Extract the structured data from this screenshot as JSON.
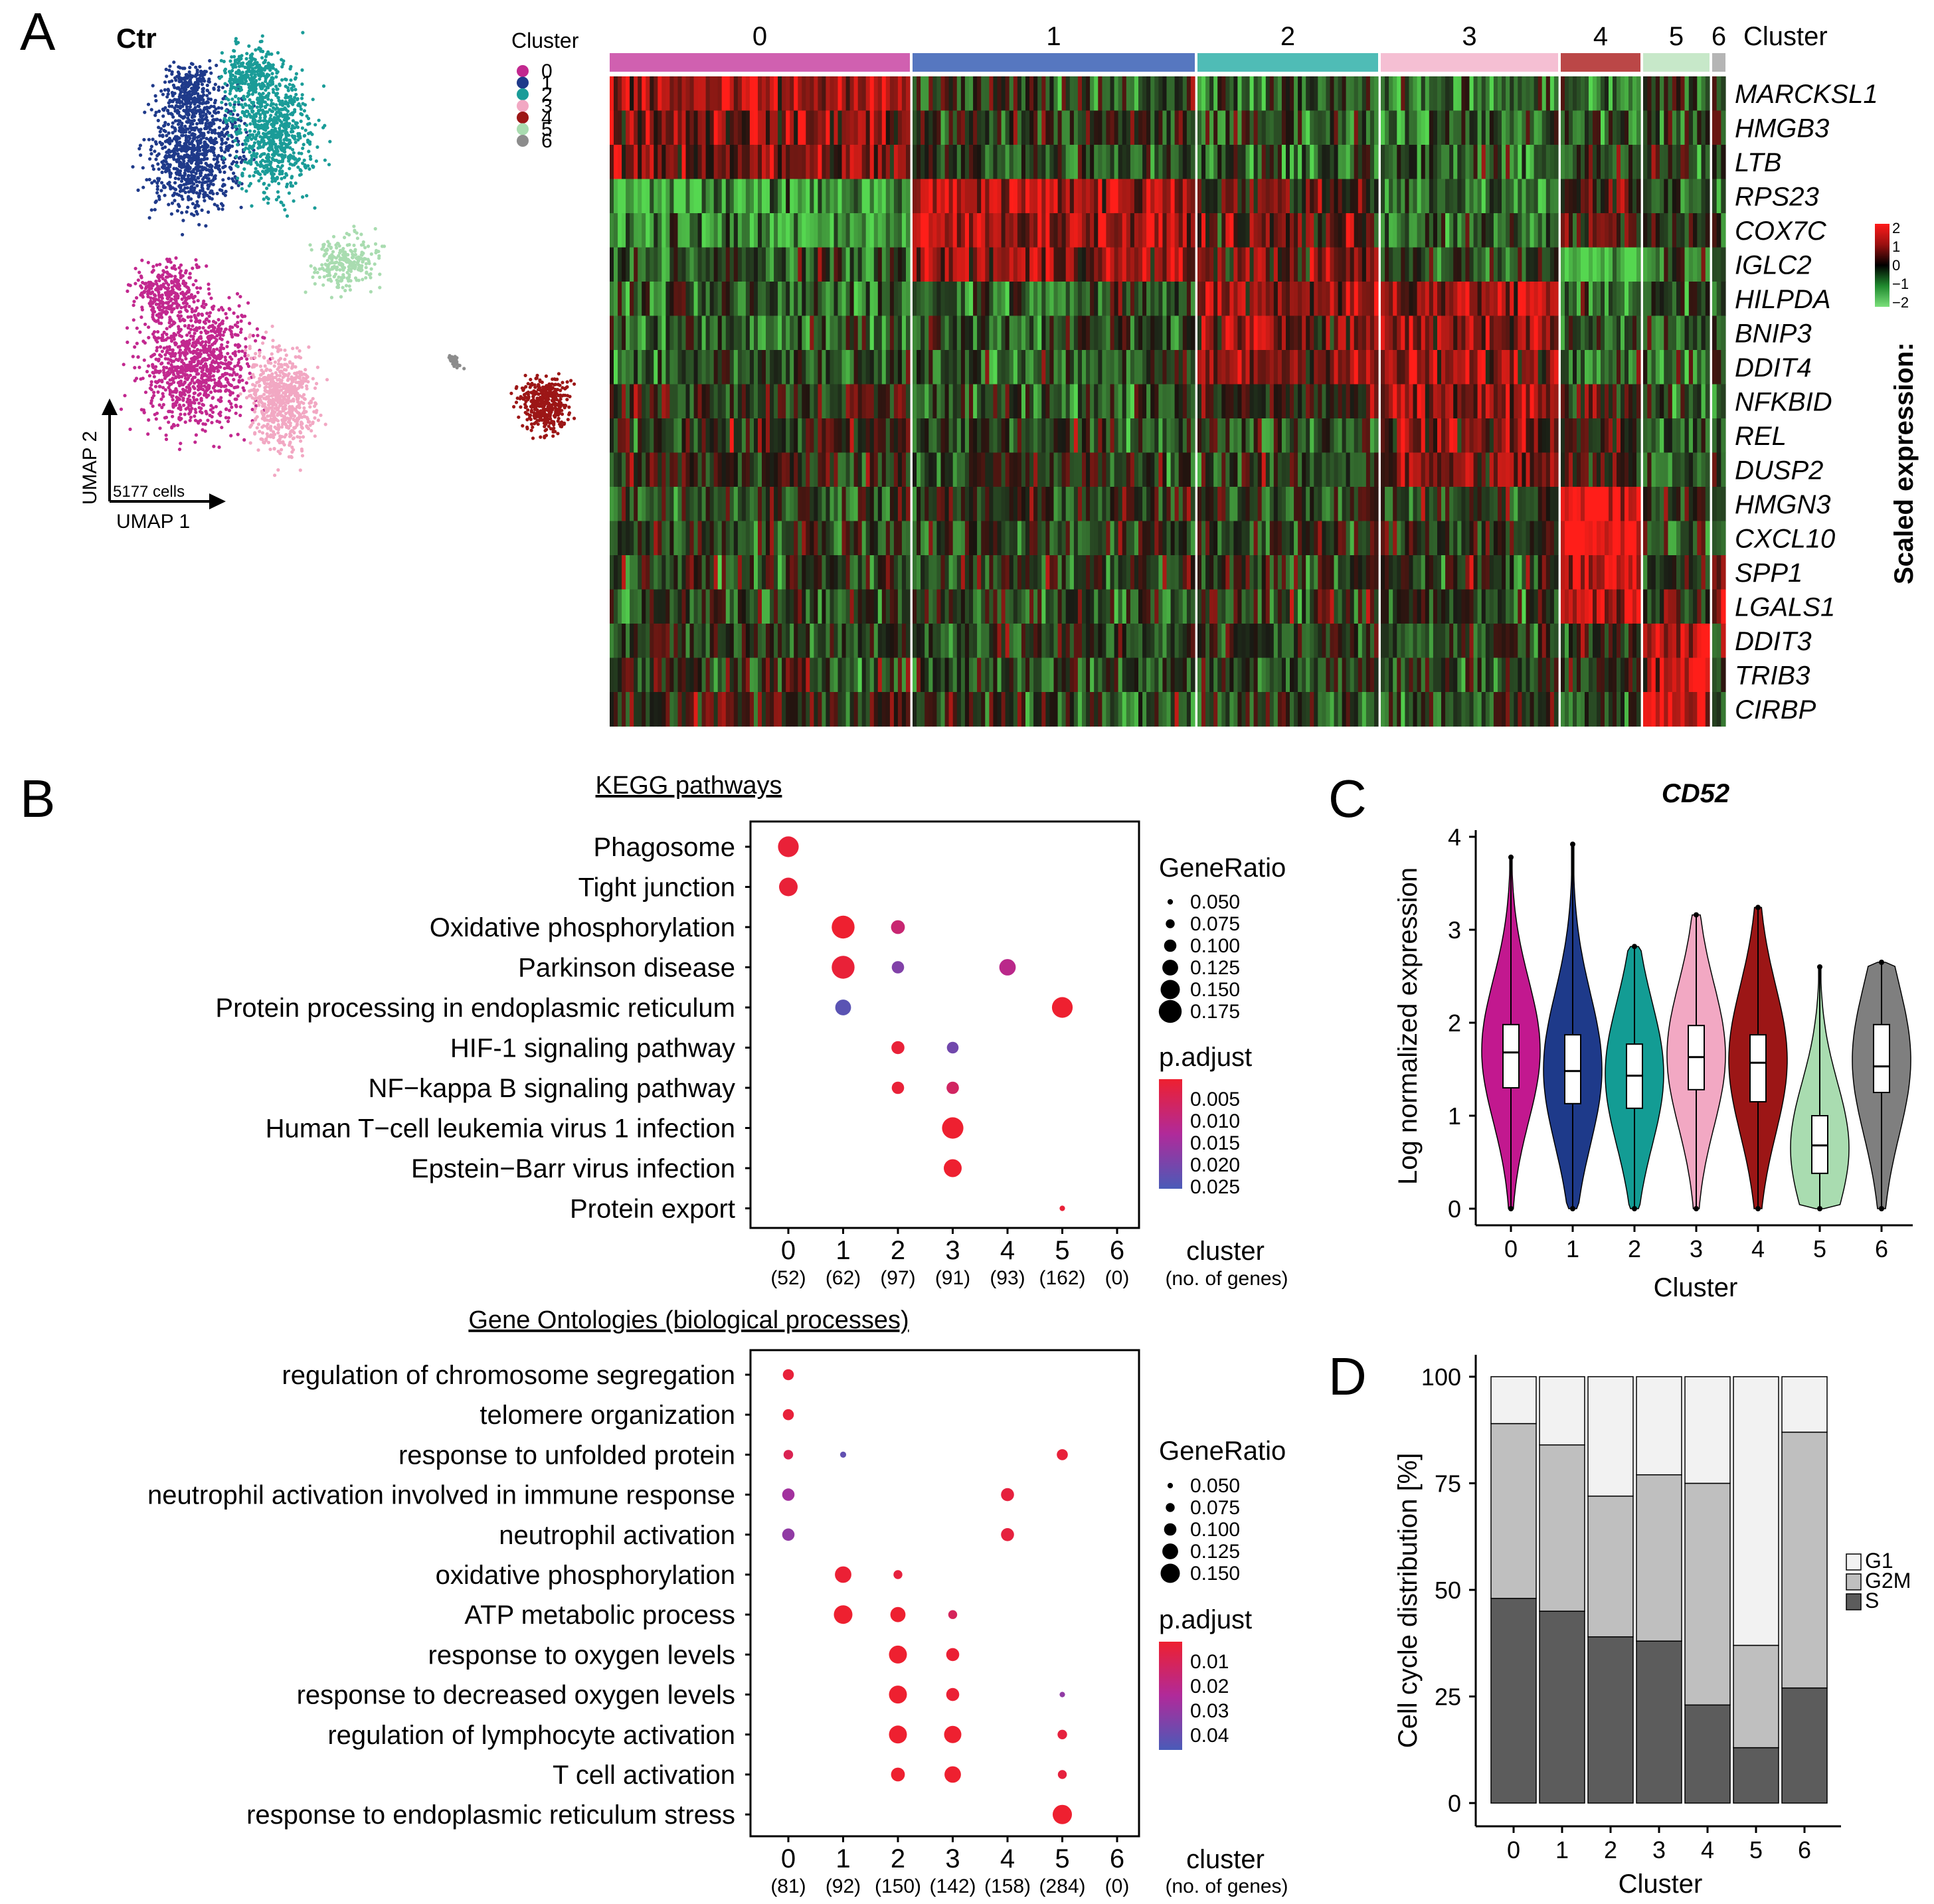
{
  "panel_labels": {
    "a": "A",
    "b": "B",
    "c": "C",
    "d": "D"
  },
  "umap": {
    "title": "Ctr",
    "legend_title": "Cluster",
    "clusters": [
      "0",
      "1",
      "2",
      "3",
      "4",
      "5",
      "6"
    ],
    "colors": [
      "#c2288f",
      "#1f3a8a",
      "#1a9c98",
      "#f2a8c3",
      "#9c1616",
      "#a9dcb0",
      "#8c8c8c"
    ],
    "cell_count": "5177 cells",
    "xlabel": "UMAP 1",
    "ylabel": "UMAP 2"
  },
  "heatmap": {
    "cluster_label": "Cluster",
    "clusters": [
      "0",
      "1",
      "2",
      "3",
      "4",
      "5",
      "6"
    ],
    "cluster_colors": [
      "#d060b0",
      "#5677c0",
      "#4fbcb6",
      "#f5bfd3",
      "#bb4747",
      "#c7e8c9",
      "#b5b5b5"
    ],
    "genes": [
      "MARCKSL1",
      "HMGB3",
      "LTB",
      "RPS23",
      "COX7C",
      "IGLC2",
      "HILPDA",
      "BNIP3",
      "DDIT4",
      "NFKBID",
      "REL",
      "DUSP2",
      "HMGN3",
      "CXCL10",
      "SPP1",
      "LGALS1",
      "DDIT3",
      "TRIB3",
      "CIRBP"
    ],
    "levels": [
      [
        1.2,
        -0.4,
        -0.8,
        -1.0,
        -0.8,
        -0.3,
        -0.2
      ],
      [
        1.1,
        -0.2,
        -0.5,
        -0.9,
        -0.6,
        -0.3,
        -0.2
      ],
      [
        0.9,
        -0.4,
        -0.6,
        -0.8,
        -0.5,
        -0.4,
        -0.3
      ],
      [
        -1.5,
        1.5,
        0.5,
        -0.9,
        0.2,
        -0.6,
        -0.5
      ],
      [
        -1.4,
        1.4,
        0.6,
        -0.9,
        0.5,
        -0.4,
        -0.5
      ],
      [
        -0.6,
        1.2,
        0.7,
        -0.4,
        -1.8,
        -0.8,
        -0.6
      ],
      [
        -0.8,
        -0.6,
        1.2,
        1.3,
        -0.7,
        -0.7,
        -0.5
      ],
      [
        -0.7,
        -0.5,
        1.0,
        1.2,
        -0.5,
        -0.7,
        -0.5
      ],
      [
        -0.5,
        -0.6,
        1.1,
        1.1,
        -0.3,
        -0.6,
        -0.4
      ],
      [
        0.1,
        -0.5,
        0.0,
        1.0,
        0.2,
        -0.9,
        -0.6
      ],
      [
        0.0,
        -0.4,
        -0.4,
        0.9,
        0.1,
        -0.8,
        -0.5
      ],
      [
        0.0,
        -0.2,
        -0.3,
        0.9,
        0.1,
        -0.6,
        -0.4
      ],
      [
        -0.3,
        -0.2,
        -0.2,
        -0.3,
        2.0,
        -0.2,
        -0.2
      ],
      [
        -0.2,
        -0.3,
        -0.2,
        0.0,
        2.0,
        -0.3,
        -0.2
      ],
      [
        -0.3,
        -0.3,
        -0.2,
        -0.2,
        1.8,
        -0.3,
        1.6
      ],
      [
        -0.4,
        -0.3,
        -0.3,
        -0.2,
        1.7,
        0.4,
        1.9
      ],
      [
        -0.3,
        -0.3,
        -0.3,
        -0.3,
        -0.1,
        2.0,
        -0.2
      ],
      [
        -0.2,
        -0.4,
        -0.3,
        -0.3,
        -0.2,
        2.0,
        -0.2
      ],
      [
        0.2,
        -0.2,
        -0.3,
        -0.3,
        -0.4,
        1.8,
        -0.2
      ]
    ],
    "legend_title": "Scaled expression:",
    "legend_ticks": [
      "2",
      "1",
      "0",
      "−1",
      "−2"
    ]
  },
  "kegg": {
    "title": "KEGG pathways",
    "terms": [
      "Phagosome",
      "Tight junction",
      "Oxidative phosphorylation",
      "Parkinson disease",
      "Protein processing in endoplasmic reticulum",
      "HIF-1 signaling pathway",
      "NF−kappa B signaling pathway",
      "Human T−cell leukemia virus 1 infection",
      "Epstein−Barr virus infection",
      "Protein export"
    ],
    "clusters": [
      "0",
      "1",
      "2",
      "3",
      "4",
      "5",
      "6"
    ],
    "gene_counts": [
      "(52)",
      "(62)",
      "(97)",
      "(91)",
      "(93)",
      "(162)",
      "(0)"
    ],
    "xlabel": "cluster",
    "xsublabel": "(no. of genes)",
    "points": [
      {
        "term": 0,
        "cluster": 0,
        "ratio": 0.16,
        "p": 0.002
      },
      {
        "term": 1,
        "cluster": 0,
        "ratio": 0.145,
        "p": 0.002
      },
      {
        "term": 2,
        "cluster": 1,
        "ratio": 0.175,
        "p": 0.001
      },
      {
        "term": 2,
        "cluster": 2,
        "ratio": 0.11,
        "p": 0.009
      },
      {
        "term": 3,
        "cluster": 1,
        "ratio": 0.175,
        "p": 0.002
      },
      {
        "term": 3,
        "cluster": 2,
        "ratio": 0.1,
        "p": 0.02
      },
      {
        "term": 3,
        "cluster": 4,
        "ratio": 0.13,
        "p": 0.012
      },
      {
        "term": 4,
        "cluster": 1,
        "ratio": 0.125,
        "p": 0.025
      },
      {
        "term": 4,
        "cluster": 5,
        "ratio": 0.16,
        "p": 0.001
      },
      {
        "term": 5,
        "cluster": 2,
        "ratio": 0.105,
        "p": 0.002
      },
      {
        "term": 5,
        "cluster": 3,
        "ratio": 0.095,
        "p": 0.022
      },
      {
        "term": 6,
        "cluster": 2,
        "ratio": 0.1,
        "p": 0.002
      },
      {
        "term": 6,
        "cluster": 3,
        "ratio": 0.1,
        "p": 0.007
      },
      {
        "term": 7,
        "cluster": 3,
        "ratio": 0.165,
        "p": 0.001
      },
      {
        "term": 8,
        "cluster": 3,
        "ratio": 0.14,
        "p": 0.001
      },
      {
        "term": 9,
        "cluster": 5,
        "ratio": 0.05,
        "p": 0.002
      }
    ],
    "size_title": "GeneRatio",
    "size_breaks": [
      0.05,
      0.075,
      0.1,
      0.125,
      0.15,
      0.175
    ],
    "size_labels": [
      "0.050",
      "0.075",
      "0.100",
      "0.125",
      "0.150",
      "0.175"
    ],
    "color_title": "p.adjust",
    "color_labels": [
      "0.005",
      "0.010",
      "0.015",
      "0.020",
      "0.025"
    ],
    "p_range": [
      0.001,
      0.027
    ]
  },
  "go": {
    "title": "Gene Ontologies (biological processes)",
    "terms": [
      "regulation of chromosome segregation",
      "telomere organization",
      "response to unfolded protein",
      "neutrophil activation involved in immune response",
      "neutrophil activation",
      "oxidative phosphorylation",
      "ATP metabolic process",
      "response to oxygen levels",
      "response to decreased oxygen levels",
      "regulation of lymphocyte activation",
      "T cell activation",
      "response to endoplasmic reticulum stress"
    ],
    "clusters": [
      "0",
      "1",
      "2",
      "3",
      "4",
      "5",
      "6"
    ],
    "gene_counts": [
      "(81)",
      "(92)",
      "(150)",
      "(142)",
      "(158)",
      "(284)",
      "(0)"
    ],
    "xlabel": "cluster",
    "xsublabel": "(no. of genes)",
    "points": [
      {
        "term": 0,
        "cluster": 0,
        "ratio": 0.09,
        "p": 0.003
      },
      {
        "term": 1,
        "cluster": 0,
        "ratio": 0.09,
        "p": 0.003
      },
      {
        "term": 2,
        "cluster": 0,
        "ratio": 0.08,
        "p": 0.008
      },
      {
        "term": 2,
        "cluster": 1,
        "ratio": 0.055,
        "p": 0.04
      },
      {
        "term": 2,
        "cluster": 5,
        "ratio": 0.09,
        "p": 0.003
      },
      {
        "term": 3,
        "cluster": 0,
        "ratio": 0.1,
        "p": 0.026
      },
      {
        "term": 3,
        "cluster": 4,
        "ratio": 0.105,
        "p": 0.004
      },
      {
        "term": 4,
        "cluster": 0,
        "ratio": 0.1,
        "p": 0.03
      },
      {
        "term": 4,
        "cluster": 4,
        "ratio": 0.105,
        "p": 0.004
      },
      {
        "term": 5,
        "cluster": 1,
        "ratio": 0.13,
        "p": 0.002
      },
      {
        "term": 5,
        "cluster": 2,
        "ratio": 0.075,
        "p": 0.004
      },
      {
        "term": 6,
        "cluster": 1,
        "ratio": 0.145,
        "p": 0.001
      },
      {
        "term": 6,
        "cluster": 2,
        "ratio": 0.12,
        "p": 0.001
      },
      {
        "term": 6,
        "cluster": 3,
        "ratio": 0.075,
        "p": 0.01
      },
      {
        "term": 7,
        "cluster": 2,
        "ratio": 0.14,
        "p": 0.001
      },
      {
        "term": 7,
        "cluster": 3,
        "ratio": 0.105,
        "p": 0.002
      },
      {
        "term": 8,
        "cluster": 2,
        "ratio": 0.14,
        "p": 0.001
      },
      {
        "term": 8,
        "cluster": 3,
        "ratio": 0.105,
        "p": 0.002
      },
      {
        "term": 8,
        "cluster": 5,
        "ratio": 0.05,
        "p": 0.03
      },
      {
        "term": 9,
        "cluster": 2,
        "ratio": 0.14,
        "p": 0.001
      },
      {
        "term": 9,
        "cluster": 3,
        "ratio": 0.135,
        "p": 0.001
      },
      {
        "term": 9,
        "cluster": 5,
        "ratio": 0.08,
        "p": 0.004
      },
      {
        "term": 10,
        "cluster": 2,
        "ratio": 0.11,
        "p": 0.001
      },
      {
        "term": 10,
        "cluster": 3,
        "ratio": 0.13,
        "p": 0.001
      },
      {
        "term": 10,
        "cluster": 5,
        "ratio": 0.075,
        "p": 0.004
      },
      {
        "term": 11,
        "cluster": 5,
        "ratio": 0.15,
        "p": 0.001
      }
    ],
    "size_title": "GeneRatio",
    "size_breaks": [
      0.05,
      0.075,
      0.1,
      0.125,
      0.15
    ],
    "size_labels": [
      "0.050",
      "0.075",
      "0.100",
      "0.125",
      "0.150"
    ],
    "color_title": "p.adjust",
    "color_labels": [
      "0.01",
      "0.02",
      "0.03",
      "0.04"
    ],
    "p_range": [
      0.001,
      0.045
    ]
  },
  "chart_data": [
    {
      "type": "violin",
      "title": "CD52",
      "xlabel": "Cluster",
      "ylabel": "Log normalized expression",
      "categories": [
        "0",
        "1",
        "2",
        "3",
        "4",
        "5",
        "6"
      ],
      "ylim": [
        -0.2,
        4.1
      ],
      "yticks": [
        "0",
        "1",
        "2",
        "3",
        "4"
      ],
      "median": [
        1.68,
        1.48,
        1.43,
        1.63,
        1.57,
        0.68,
        1.53
      ],
      "q1": [
        1.3,
        1.13,
        1.08,
        1.28,
        1.15,
        0.38,
        1.25
      ],
      "q3": [
        1.98,
        1.87,
        1.77,
        1.97,
        1.87,
        1.0,
        1.98
      ],
      "min": [
        0.0,
        0.0,
        0.0,
        0.0,
        0.0,
        0.0,
        0.0
      ],
      "max": [
        3.78,
        3.92,
        2.82,
        3.16,
        3.24,
        2.6,
        2.65
      ],
      "density_peak": [
        1.7,
        1.5,
        1.45,
        1.65,
        1.6,
        0.65,
        1.6
      ],
      "colors": [
        "#c2188f",
        "#1e3a8a",
        "#139c94",
        "#f2a8c3",
        "#9c1616",
        "#a9dcb0",
        "#7f7f7f"
      ]
    },
    {
      "type": "stacked_bar",
      "xlabel": "Cluster",
      "ylabel": "Cell cycle distribution [%]",
      "categories": [
        "0",
        "1",
        "2",
        "3",
        "4",
        "5",
        "6"
      ],
      "ylim": [
        0,
        100
      ],
      "yticks": [
        "0",
        "25",
        "50",
        "75",
        "100"
      ],
      "series": [
        {
          "name": "S",
          "values": [
            48,
            45,
            39,
            38,
            23,
            13,
            27
          ],
          "color": "#5c5c5c"
        },
        {
          "name": "G2M",
          "values": [
            41,
            39,
            33,
            39,
            52,
            24,
            60
          ],
          "color": "#bfbfbf"
        },
        {
          "name": "G1",
          "values": [
            11,
            16,
            28,
            23,
            25,
            63,
            13
          ],
          "color": "#f2f2f2"
        }
      ],
      "legend_order": [
        "G1",
        "G2M",
        "S"
      ]
    }
  ]
}
